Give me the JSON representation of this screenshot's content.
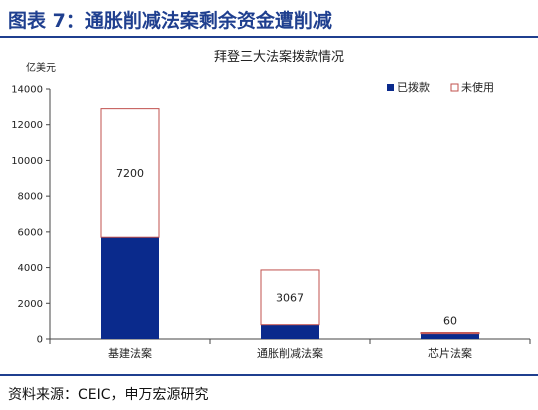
{
  "header": {
    "title": "图表 7：通胀削减法案剩余资金遭削减"
  },
  "footer": {
    "source": "资料来源：CEIC，申万宏源研究"
  },
  "chart_data": {
    "type": "bar",
    "stacked": true,
    "title": "拜登三大法案拨款情况",
    "ylabel": "亿美元",
    "xlabel": "",
    "ylim": [
      0,
      14000
    ],
    "yticks": [
      0,
      2000,
      4000,
      6000,
      8000,
      10000,
      12000,
      14000
    ],
    "ytick_labels": [
      "0",
      "2000",
      "4000",
      "6000",
      "8000",
      "10000",
      "12000",
      "14000"
    ],
    "categories": [
      "基建法案",
      "通胀削减法案",
      "芯片法案"
    ],
    "series": [
      {
        "name": "已拨款",
        "values": [
          5700,
          800,
          300
        ],
        "color": "#0a2a8c",
        "fill": "solid"
      },
      {
        "name": "未使用",
        "values": [
          7200,
          3067,
          60
        ],
        "color": "#c0504d",
        "fill": "outline"
      }
    ],
    "data_labels": [
      "7200",
      "3067",
      "60"
    ],
    "legend_position": "top-right",
    "grid": false
  }
}
